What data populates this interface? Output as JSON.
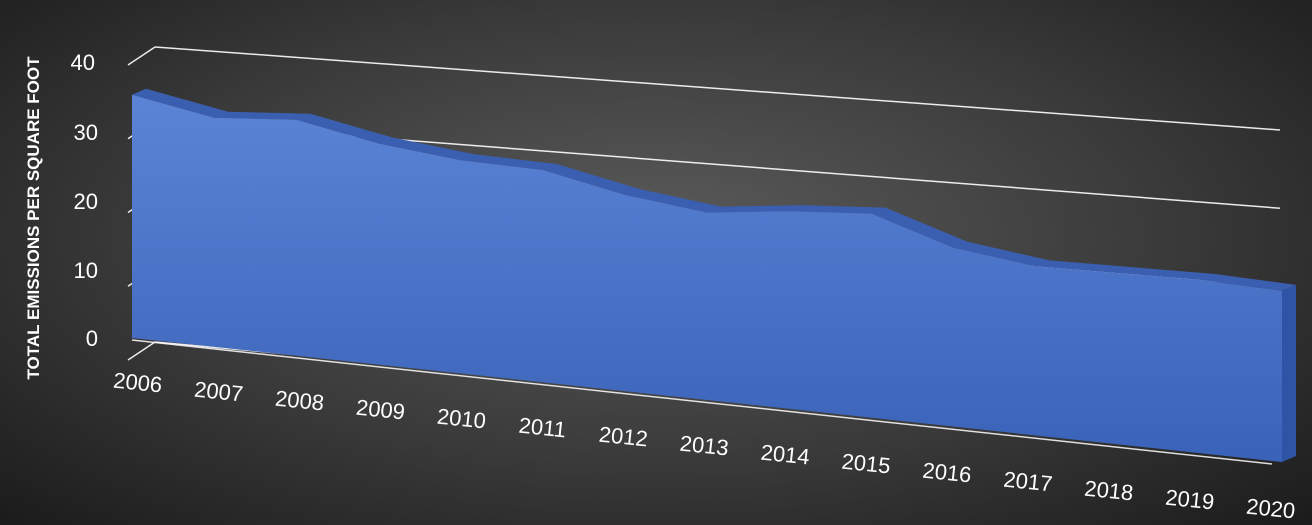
{
  "chart_data": {
    "type": "area",
    "title": "",
    "xlabel": "",
    "ylabel": "TOTAL EMISSIONS PER SQUARE FOOT",
    "categories": [
      "2006",
      "2007",
      "2008",
      "2009",
      "2010",
      "2011",
      "2012",
      "2013",
      "2014",
      "2015",
      "2016",
      "2017",
      "2018",
      "2019",
      "2020"
    ],
    "series": [
      {
        "values": [
          35,
          32.5,
          33,
          30.5,
          29,
          28.5,
          26,
          24.5,
          25.5,
          26,
          22.5,
          21,
          21,
          21,
          20.5
        ]
      }
    ],
    "ylim": [
      0,
      40
    ],
    "yticks": [
      0,
      10,
      20,
      30,
      40
    ],
    "grid": true,
    "legend": "none",
    "colors": {
      "area": "#4472C4",
      "grid": "#ffffff",
      "text": "#ffffff"
    }
  }
}
